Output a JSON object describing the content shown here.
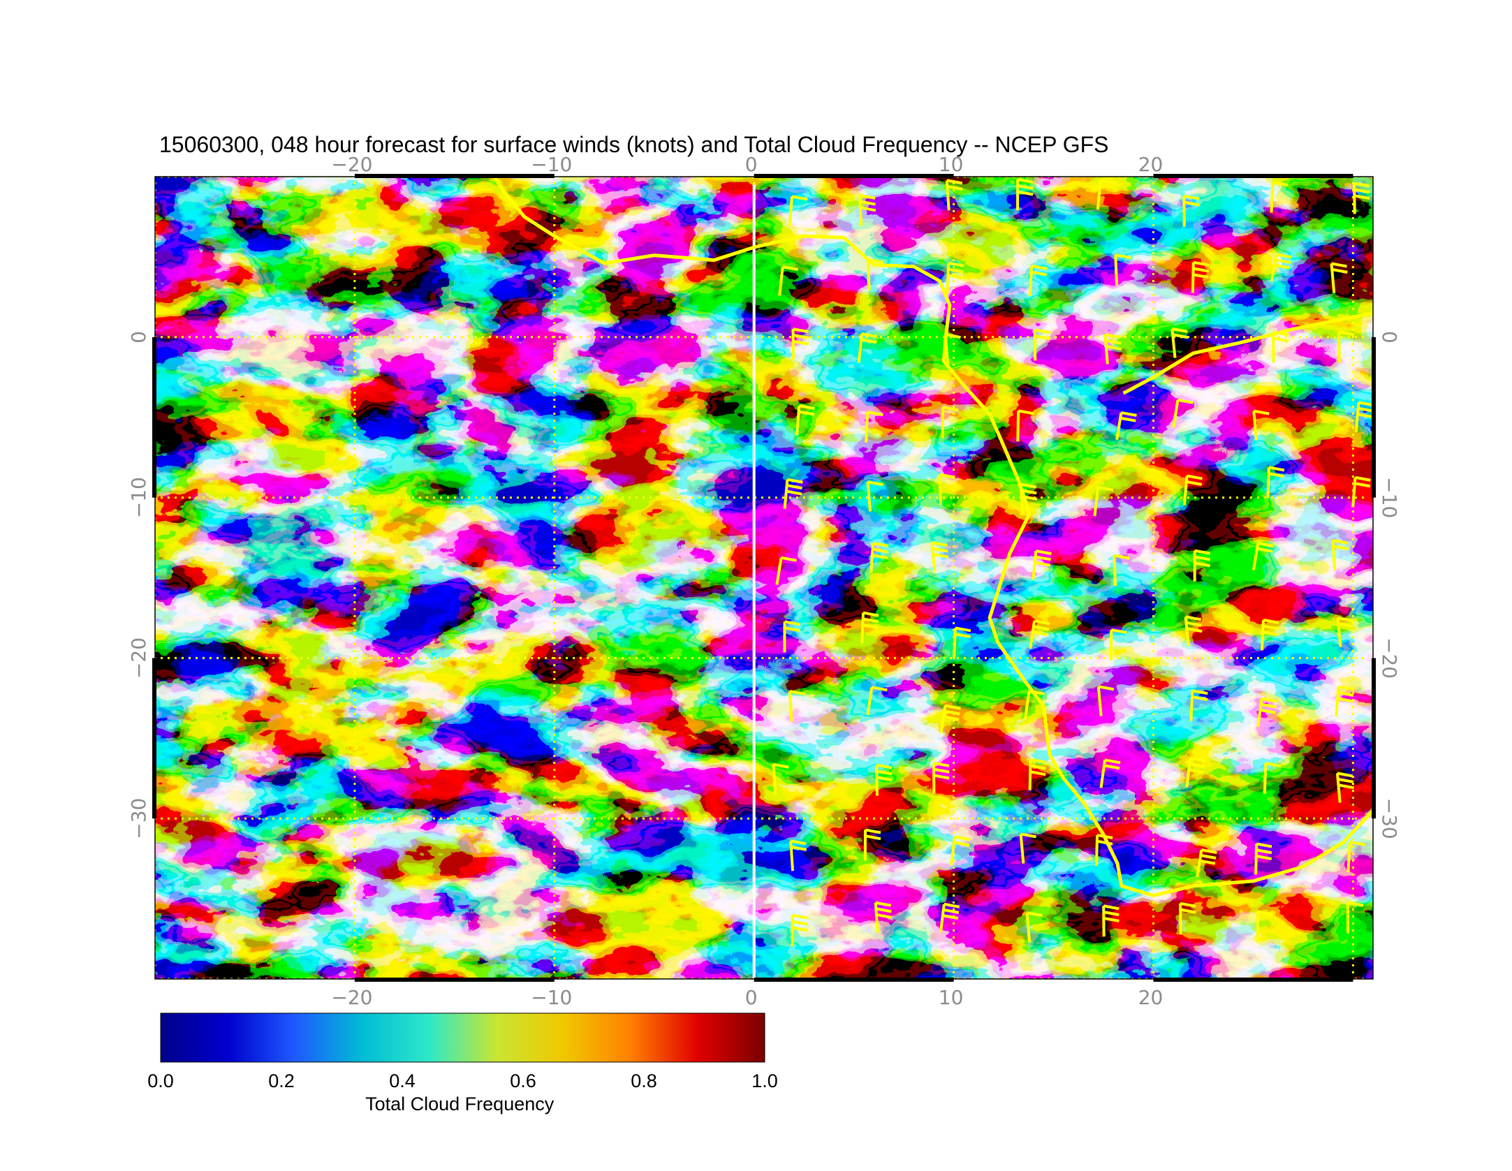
{
  "title": "15060300, 048 hour forecast for surface winds (knots) and Total Cloud Frequency -- NCEP GFS",
  "axes": {
    "lon_range": [
      -30,
      31
    ],
    "lat_range": [
      -40,
      10
    ],
    "lon_ticks": [
      {
        "value": -20,
        "label": "−20"
      },
      {
        "value": -10,
        "label": "−10"
      },
      {
        "value": 0,
        "label": "0"
      },
      {
        "value": 10,
        "label": "10"
      },
      {
        "value": 20,
        "label": "20"
      }
    ],
    "lat_ticks": [
      {
        "value": 0,
        "label": "0"
      },
      {
        "value": -10,
        "label": "−10"
      },
      {
        "value": -20,
        "label": "−20"
      },
      {
        "value": -30,
        "label": "−30"
      }
    ],
    "grid": true,
    "grid_color": "#ffff00"
  },
  "colorbar": {
    "label": "Total Cloud Frequency",
    "ticks": [
      {
        "value": 0.0,
        "label": "0.0"
      },
      {
        "value": 0.2,
        "label": "0.2"
      },
      {
        "value": 0.4,
        "label": "0.4"
      },
      {
        "value": 0.6,
        "label": "0.6"
      },
      {
        "value": 0.8,
        "label": "0.8"
      },
      {
        "value": 1.0,
        "label": "1.0"
      }
    ],
    "colors": [
      "#00008b",
      "#0000cd",
      "#1e5aff",
      "#00bcd4",
      "#2ee8c8",
      "#c8e632",
      "#f0c800",
      "#ff8000",
      "#e00000",
      "#7a0000"
    ]
  },
  "chart_data": {
    "type": "heatmap",
    "title": "15060300, 048 hour forecast for surface winds (knots) and Total Cloud Frequency -- NCEP GFS",
    "variable": "Total Cloud Frequency",
    "value_range": [
      0.0,
      1.0
    ],
    "xlim": [
      -30,
      31
    ],
    "ylim": [
      -40,
      10
    ],
    "overlays": [
      "surface wind barbs (knots)",
      "coastlines"
    ],
    "coast_color": "#ffff00",
    "prime_meridian_color": "#ffffff"
  }
}
